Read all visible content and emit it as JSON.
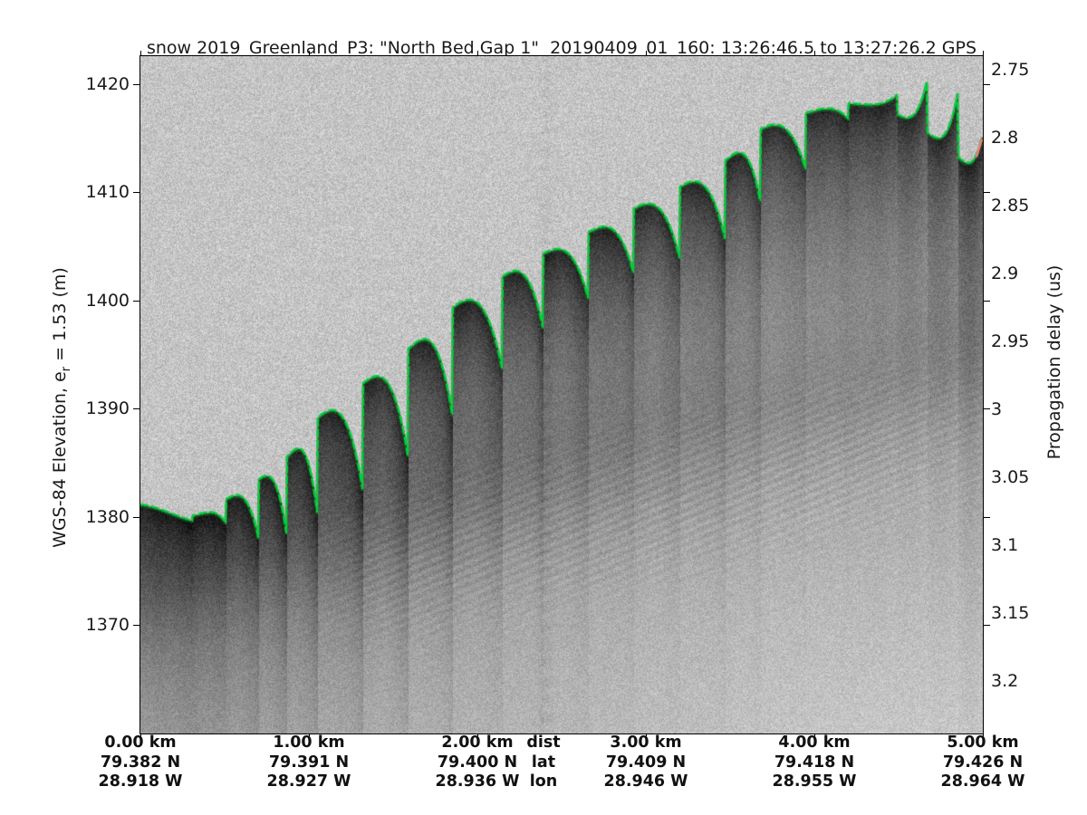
{
  "figure": {
    "title": "snow 2019_Greenland_P3: \"North Bed Gap 1\"  20190409_01_160: 13:26:46.5 to 13:27:26.2 GPS"
  },
  "axes": {
    "left": {
      "label_pre": "WGS-84 Elevation, e",
      "label_sub": "r",
      "label_post": " = 1.53 (m)",
      "tick_labels": [
        "1420",
        "1410",
        "1400",
        "1390",
        "1380",
        "1370"
      ],
      "tick_values": [
        1420,
        1410,
        1400,
        1390,
        1380,
        1370
      ],
      "range": [
        1359.95,
        1422.6
      ]
    },
    "right": {
      "label": "Propagation delay (us)",
      "tick_labels": [
        "2.75",
        "2.8",
        "2.85",
        "2.9",
        "2.95",
        "3",
        "3.05",
        "3.1",
        "3.15",
        "3.2"
      ],
      "tick_values": [
        2.75,
        2.8,
        2.85,
        2.9,
        2.95,
        3.0,
        3.05,
        3.1,
        3.15,
        3.2
      ],
      "range": [
        2.74,
        3.2387
      ]
    },
    "bottom": {
      "tick_values_km": [
        0,
        1,
        2,
        3,
        4,
        5
      ],
      "range_km": [
        0,
        5
      ],
      "legend": {
        "dist": "dist",
        "lat": "lat",
        "lon": "lon"
      },
      "legend_x_km": 2.393,
      "columns": [
        {
          "dist": "0.00 km",
          "lat": "79.382 N",
          "lon": "28.918 W"
        },
        {
          "dist": "1.00 km",
          "lat": "79.391 N",
          "lon": "28.927 W"
        },
        {
          "dist": "2.00 km",
          "lat": "79.400 N",
          "lon": "28.936 W"
        },
        {
          "dist": "3.00 km",
          "lat": "79.409 N",
          "lon": "28.946 W"
        },
        {
          "dist": "4.00 km",
          "lat": "79.418 N",
          "lon": "28.955 W"
        },
        {
          "dist": "5.00 km",
          "lat": "79.426 N",
          "lon": "28.964 W"
        }
      ]
    }
  },
  "chart_data": {
    "type": "heatmap",
    "title": "snow 2019_Greenland_P3: \"North Bed Gap 1\"  20190409_01_160: 13:26:46.5 to 13:27:26.2 GPS",
    "xlabel_rows": [
      "dist",
      "lat",
      "lon"
    ],
    "ylabel_left": "WGS-84 Elevation, e_r = 1.53 (m)",
    "ylabel_right": "Propagation delay (us)",
    "x_range_km": [
      0,
      5
    ],
    "elevation_range_m": [
      1359.95,
      1422.6
    ],
    "delay_range_us": [
      2.74,
      3.2387
    ],
    "surface_profile": {
      "km": [
        0.0,
        0.31,
        0.51,
        0.7,
        0.87,
        1.05,
        1.32,
        1.59,
        1.85,
        2.15,
        2.39,
        2.66,
        2.93,
        3.2,
        3.47,
        3.68,
        3.95,
        4.2,
        4.49,
        4.67,
        4.85,
        5.0
      ],
      "elevation_m": [
        1381.1,
        1380.1,
        1381.6,
        1383.4,
        1385.5,
        1389.1,
        1392.3,
        1395.5,
        1399.3,
        1402.2,
        1404.3,
        1406.3,
        1408.5,
        1410.5,
        1412.9,
        1415.8,
        1417.3,
        1418.2,
        1417.2,
        1415.5,
        1413.3,
        1411.4
      ]
    },
    "surface_min_elevation_m": 1380.1,
    "surface_max_elevation_m": 1418.2,
    "colors": {
      "surface_line": "#00cf3a",
      "surface_line_edge": "#0e8c28",
      "crossover_marker": "#ff7a7a",
      "sky_noise": "#c5c5c5",
      "subsurface_dark": "#2e2e2e",
      "deep_medium": "#8a8a8a",
      "axis": "#000000"
    },
    "surface_line_style": "dashed"
  }
}
